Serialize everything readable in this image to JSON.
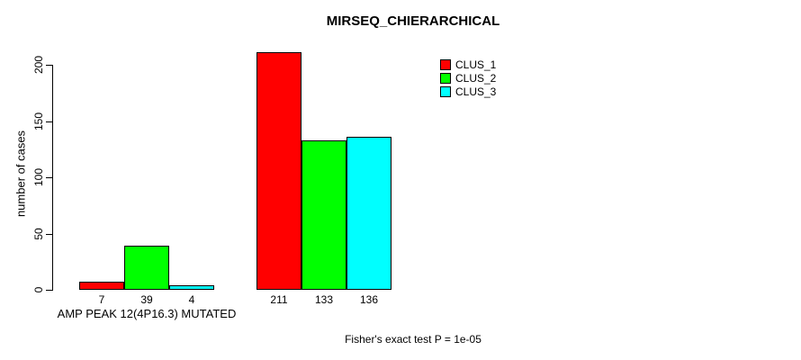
{
  "chart_data": {
    "type": "bar",
    "title": "MIRSEQ_CHIERARCHICAL",
    "ylabel": "number of cases",
    "ylim": [
      0,
      211
    ],
    "yticks": [
      0,
      50,
      100,
      150,
      200
    ],
    "grid": false,
    "legend_position": "inside-top-right-of-plot",
    "categories": [
      "AMP PEAK 12(4P16.3) MUTATED",
      ""
    ],
    "series": [
      {
        "name": "CLUS_1",
        "color": "#ff0000",
        "values": [
          7,
          211
        ]
      },
      {
        "name": "CLUS_2",
        "color": "#00ff00",
        "values": [
          39,
          133
        ]
      },
      {
        "name": "CLUS_3",
        "color": "#00ffff",
        "values": [
          4,
          136
        ]
      }
    ],
    "bar_value_labels": [
      [
        "7",
        "39",
        "4"
      ],
      [
        "211",
        "133",
        "136"
      ]
    ],
    "footnote": "Fisher's exact test P = 1e-05"
  },
  "colors": {
    "background": "#ffffff",
    "axis": "#000000",
    "text": "#000000",
    "bar_border": "#000000"
  }
}
